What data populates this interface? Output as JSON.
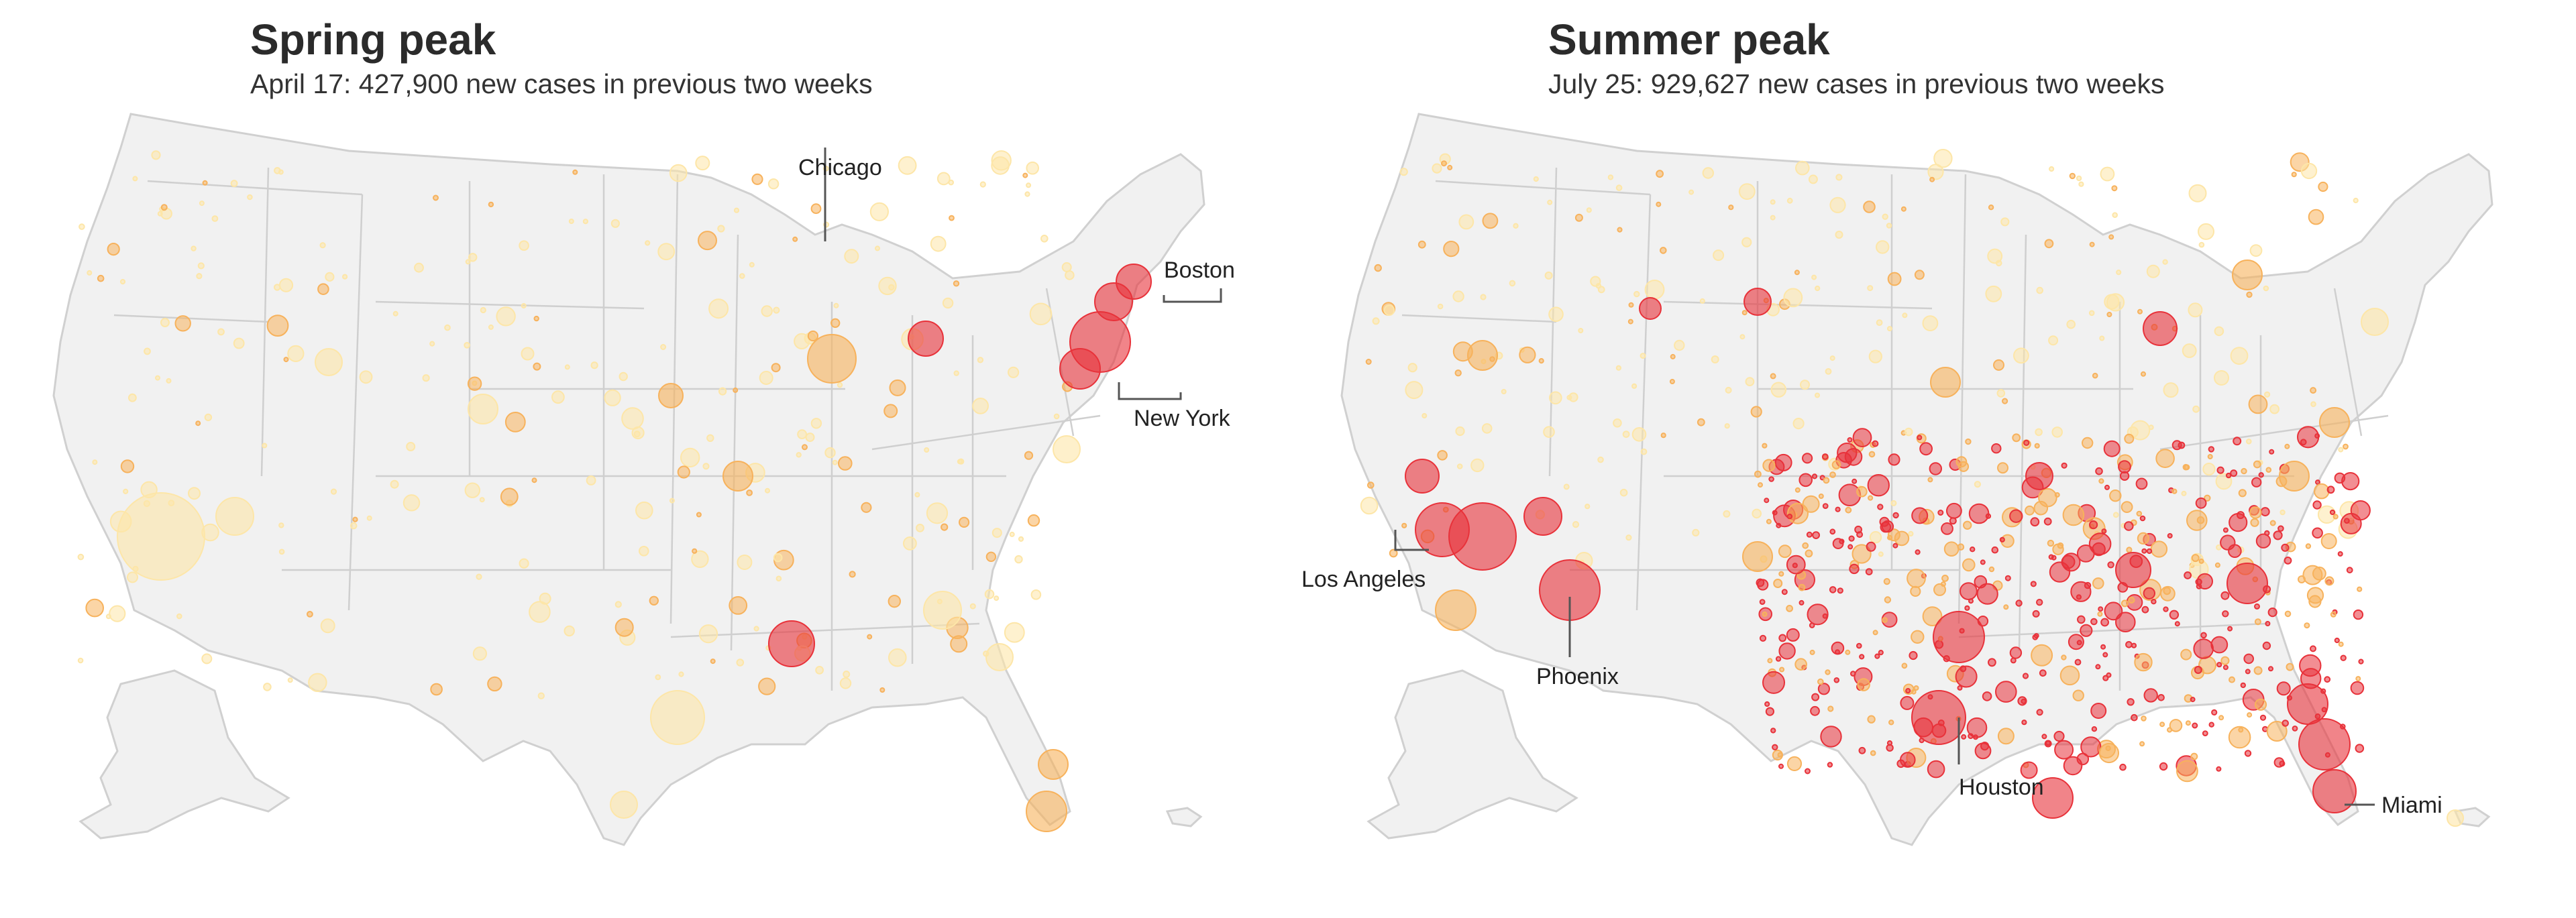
{
  "colors": {
    "land": "#f1f1f1",
    "border": "#cfcfcf",
    "low": "#fde6a8",
    "mid": "#f7b25c",
    "high": "#e8323a"
  },
  "panels": [
    {
      "title": "Spring peak",
      "subtitle": "April 17: 427,900 new cases in previous two weeks",
      "cities": [
        {
          "name": "Chicago"
        },
        {
          "name": "Boston"
        },
        {
          "name": "New York"
        }
      ]
    },
    {
      "title": "Summer peak",
      "subtitle": "July 25: 929,627 new cases in previous two weeks",
      "cities": [
        {
          "name": "Los Angeles"
        },
        {
          "name": "Phoenix"
        },
        {
          "name": "Houston"
        },
        {
          "name": "Miami"
        }
      ]
    }
  ]
}
